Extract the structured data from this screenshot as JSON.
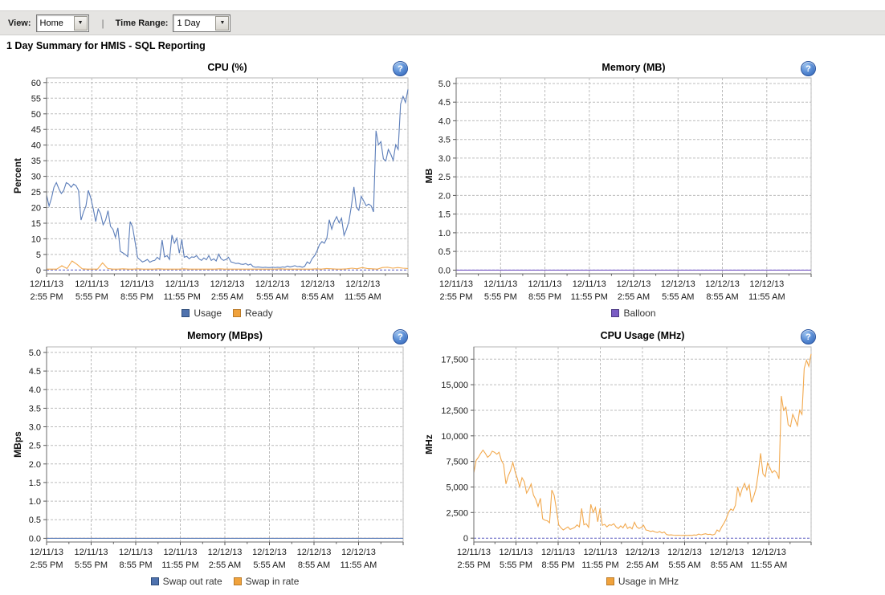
{
  "toolbar": {
    "view_label": "View:",
    "view_value": "Home",
    "separator": "|",
    "time_range_label": "Time Range:",
    "time_range_value": "1 Day",
    "dropdown_arrow": "▼"
  },
  "page": {
    "heading": "1 Day Summary for HMIS - SQL Reporting"
  },
  "help_icon_glyph": "?",
  "chart_data": {
    "type": "line",
    "x_ticks": [
      {
        "date": "12/11/13",
        "time": "2:55 PM"
      },
      {
        "date": "12/11/13",
        "time": "5:55 PM"
      },
      {
        "date": "12/11/13",
        "time": "8:55 PM"
      },
      {
        "date": "12/11/13",
        "time": "11:55 PM"
      },
      {
        "date": "12/12/13",
        "time": "2:55 AM"
      },
      {
        "date": "12/12/13",
        "time": "5:55 AM"
      },
      {
        "date": "12/12/13",
        "time": "8:55 AM"
      },
      {
        "date": "12/12/13",
        "time": "11:55 AM"
      }
    ],
    "grid": true,
    "legend_position": "bottom",
    "charts": [
      {
        "title": "CPU (%)",
        "ylabel": "Percent",
        "ymin": -1.2,
        "ymax": 61.5,
        "yticks": [
          [
            0,
            "0"
          ],
          [
            5,
            "5"
          ],
          [
            10,
            "10"
          ],
          [
            15,
            "15"
          ],
          [
            20,
            "20"
          ],
          [
            25,
            "25"
          ],
          [
            30,
            "30"
          ],
          [
            35,
            "35"
          ],
          [
            40,
            "40"
          ],
          [
            45,
            "45"
          ],
          [
            50,
            "50"
          ],
          [
            55,
            "55"
          ],
          [
            60,
            "60"
          ]
        ],
        "series": [
          {
            "name": "Usage",
            "color": "#5b7db9",
            "values": [
              24,
              20.5,
              23,
              26.5,
              28,
              26,
              24.5,
              25.5,
              28,
              27.5,
              26.5,
              27.5,
              27,
              25.5,
              16,
              18.5,
              20.5,
              25.5,
              23,
              19.5,
              15.5,
              19.5,
              18,
              14.5,
              16,
              19,
              14,
              13,
              10.5,
              13.5,
              6,
              5.5,
              5,
              4.3,
              15.5,
              13.8,
              9,
              4,
              3.3,
              2.6,
              2.9,
              3.4,
              2.5,
              2.9,
              3.1,
              4.1,
              3.4,
              9.6,
              4.2,
              4.6,
              3.4,
              11.2,
              8.6,
              10.2,
              5.4,
              9.8,
              4.1,
              4.4,
              3.6,
              4.2,
              4.1,
              4.6,
              3.6,
              3.1,
              3.9,
              3.3,
              4.6,
              3.1,
              3.6,
              2.9,
              5.1,
              3.6,
              3.1,
              3.4,
              4.1,
              2.6,
              2.4,
              2.1,
              2.2,
              1.9,
              1.8,
              2.1,
              1.6,
              1.9,
              1.1,
              0.9,
              1,
              0.9,
              0.8,
              0.9,
              0.8,
              0.8,
              0.9,
              0.8,
              0.9,
              0.8,
              1,
              0.9,
              1.3,
              1,
              1.2,
              1.4,
              1.1,
              1.2,
              0.9,
              1.2,
              2.6,
              2.1,
              3.6,
              4.6,
              6.1,
              8.1,
              9.1,
              8.6,
              10.2,
              16.1,
              13.1,
              15.6,
              17.1,
              15.1,
              16.6,
              11.1,
              13.1,
              15.6,
              20.6,
              26.6,
              20.1,
              19.1,
              23.6,
              22.1,
              20.6,
              21.1,
              20.6,
              18.6,
              44.6,
              40.1,
              41.1,
              35.6,
              34.9,
              38.6,
              37.1,
              35.1,
              40.1,
              38.6,
              53.1,
              55.6,
              53.6,
              57.8
            ]
          },
          {
            "name": "Ready",
            "color": "#f2a94e",
            "values": [
              0.3,
              0.3,
              0.3,
              1.4,
              0.5,
              2.9,
              1.8,
              0.4,
              0.3,
              0.3,
              0.3,
              2.3,
              0.5,
              0.3,
              0.3,
              0.4,
              0.3,
              0.3,
              0.4,
              0.3,
              0.3,
              0.3,
              0.4,
              0.3,
              0.3,
              0.3,
              0.3,
              0.4,
              0.3,
              0.3,
              0.3,
              0.3,
              0.3,
              0.3,
              0.4,
              0.3,
              0.3,
              0.3,
              0.3,
              0.3,
              0.3,
              0.3,
              0.3,
              0.3,
              0.3,
              0.3,
              0.4,
              0.3,
              0.3,
              0.3,
              0.3,
              0.3,
              0.3,
              0.4,
              0.3,
              0.5,
              0.4,
              0.3,
              0.3,
              0.4,
              0.6,
              0.4,
              0.8,
              0.5,
              0.4,
              0.3,
              0.8,
              0.9,
              0.6,
              0.8,
              0.6,
              0.5
            ]
          }
        ],
        "legend": [
          {
            "label": "Usage",
            "color": "#4f72ae",
            "border": "#2e4d7b"
          },
          {
            "label": "Ready",
            "color": "#f0a23c",
            "border": "#b97a28"
          }
        ]
      },
      {
        "title": "Memory (MB)",
        "ylabel": "MB",
        "ymin": -0.1,
        "ymax": 5.15,
        "yticks": [
          [
            0,
            "0.0"
          ],
          [
            0.5,
            "0.5"
          ],
          [
            1,
            "1.0"
          ],
          [
            1.5,
            "1.5"
          ],
          [
            2,
            "2.0"
          ],
          [
            2.5,
            "2.5"
          ],
          [
            3,
            "3.0"
          ],
          [
            3.5,
            "3.5"
          ],
          [
            4,
            "4.0"
          ],
          [
            4.5,
            "4.5"
          ],
          [
            5,
            "5.0"
          ]
        ],
        "series": [
          {
            "name": "Balloon",
            "color": "#7a5cc4",
            "values": [
              0,
              0
            ]
          }
        ],
        "legend": [
          {
            "label": "Balloon",
            "color": "#7a5cc4",
            "border": "#4d3a85"
          }
        ]
      },
      {
        "title": "Memory (MBps)",
        "ylabel": "MBps",
        "ymin": -0.1,
        "ymax": 5.15,
        "yticks": [
          [
            0,
            "0.0"
          ],
          [
            0.5,
            "0.5"
          ],
          [
            1,
            "1.0"
          ],
          [
            1.5,
            "1.5"
          ],
          [
            2,
            "2.0"
          ],
          [
            2.5,
            "2.5"
          ],
          [
            3,
            "3.0"
          ],
          [
            3.5,
            "3.5"
          ],
          [
            4,
            "4.0"
          ],
          [
            4.5,
            "4.5"
          ],
          [
            5,
            "5.0"
          ]
        ],
        "series": [
          {
            "name": "Swap in rate",
            "color": "#f2a94e",
            "values": [
              0,
              0
            ]
          },
          {
            "name": "Swap out rate",
            "color": "#5b7db9",
            "values": [
              0,
              0
            ]
          }
        ],
        "legend": [
          {
            "label": "Swap out rate",
            "color": "#4f72ae",
            "border": "#2e4d7b"
          },
          {
            "label": "Swap in rate",
            "color": "#f0a23c",
            "border": "#b97a28"
          }
        ]
      },
      {
        "title": "CPU Usage (MHz)",
        "ylabel": "MHz",
        "ymin": -380,
        "ymax": 18700,
        "yticks": [
          [
            0,
            "0"
          ],
          [
            2500,
            "2,500"
          ],
          [
            5000,
            "5,000"
          ],
          [
            7500,
            "7,500"
          ],
          [
            10000,
            "10,000"
          ],
          [
            12500,
            "12,500"
          ],
          [
            15000,
            "15,000"
          ],
          [
            17500,
            "17,500"
          ]
        ],
        "series": [
          {
            "name": "Usage in MHz",
            "color": "#f2a94e",
            "values": [
              6400,
              7600,
              7900,
              8300,
              8600,
              8300,
              7900,
              8100,
              8500,
              8400,
              8200,
              8400,
              7600,
              7200,
              5300,
              6100,
              6600,
              7400,
              6500,
              5800,
              5000,
              5900,
              5500,
              4400,
              4800,
              5300,
              4200,
              3800,
              3100,
              3900,
              1900,
              1750,
              1700,
              1500,
              4700,
              4200,
              2800,
              1300,
              1000,
              800,
              950,
              1100,
              850,
              950,
              1050,
              1300,
              1100,
              2900,
              1300,
              1400,
              1050,
              3300,
              2500,
              3000,
              1600,
              2900,
              1250,
              1350,
              1100,
              1300,
              1250,
              1400,
              1100,
              950,
              1200,
              1000,
              1400,
              950,
              1100,
              900,
              1550,
              1100,
              950,
              1050,
              1250,
              800,
              750,
              650,
              700,
              600,
              550,
              650,
              500,
              600,
              350,
              300,
              320,
              290,
              270,
              290,
              270,
              260,
              280,
              260,
              280,
              260,
              310,
              290,
              400,
              320,
              380,
              430,
              350,
              380,
              300,
              380,
              800,
              650,
              1100,
              1450,
              1900,
              2500,
              2850,
              2700,
              3200,
              5000,
              4100,
              4850,
              5350,
              4700,
              5200,
              3500,
              4100,
              4850,
              6400,
              8300,
              6300,
              6000,
              7350,
              6900,
              6400,
              6600,
              6400,
              5800,
              13900,
              12500,
              12800,
              11100,
              10900,
              12100,
              11600,
              11000,
              12500,
              12100,
              16600,
              17400,
              16800,
              18000
            ]
          }
        ],
        "legend": [
          {
            "label": "Usage in MHz",
            "color": "#f0a23c",
            "border": "#b97a28"
          }
        ]
      }
    ]
  }
}
